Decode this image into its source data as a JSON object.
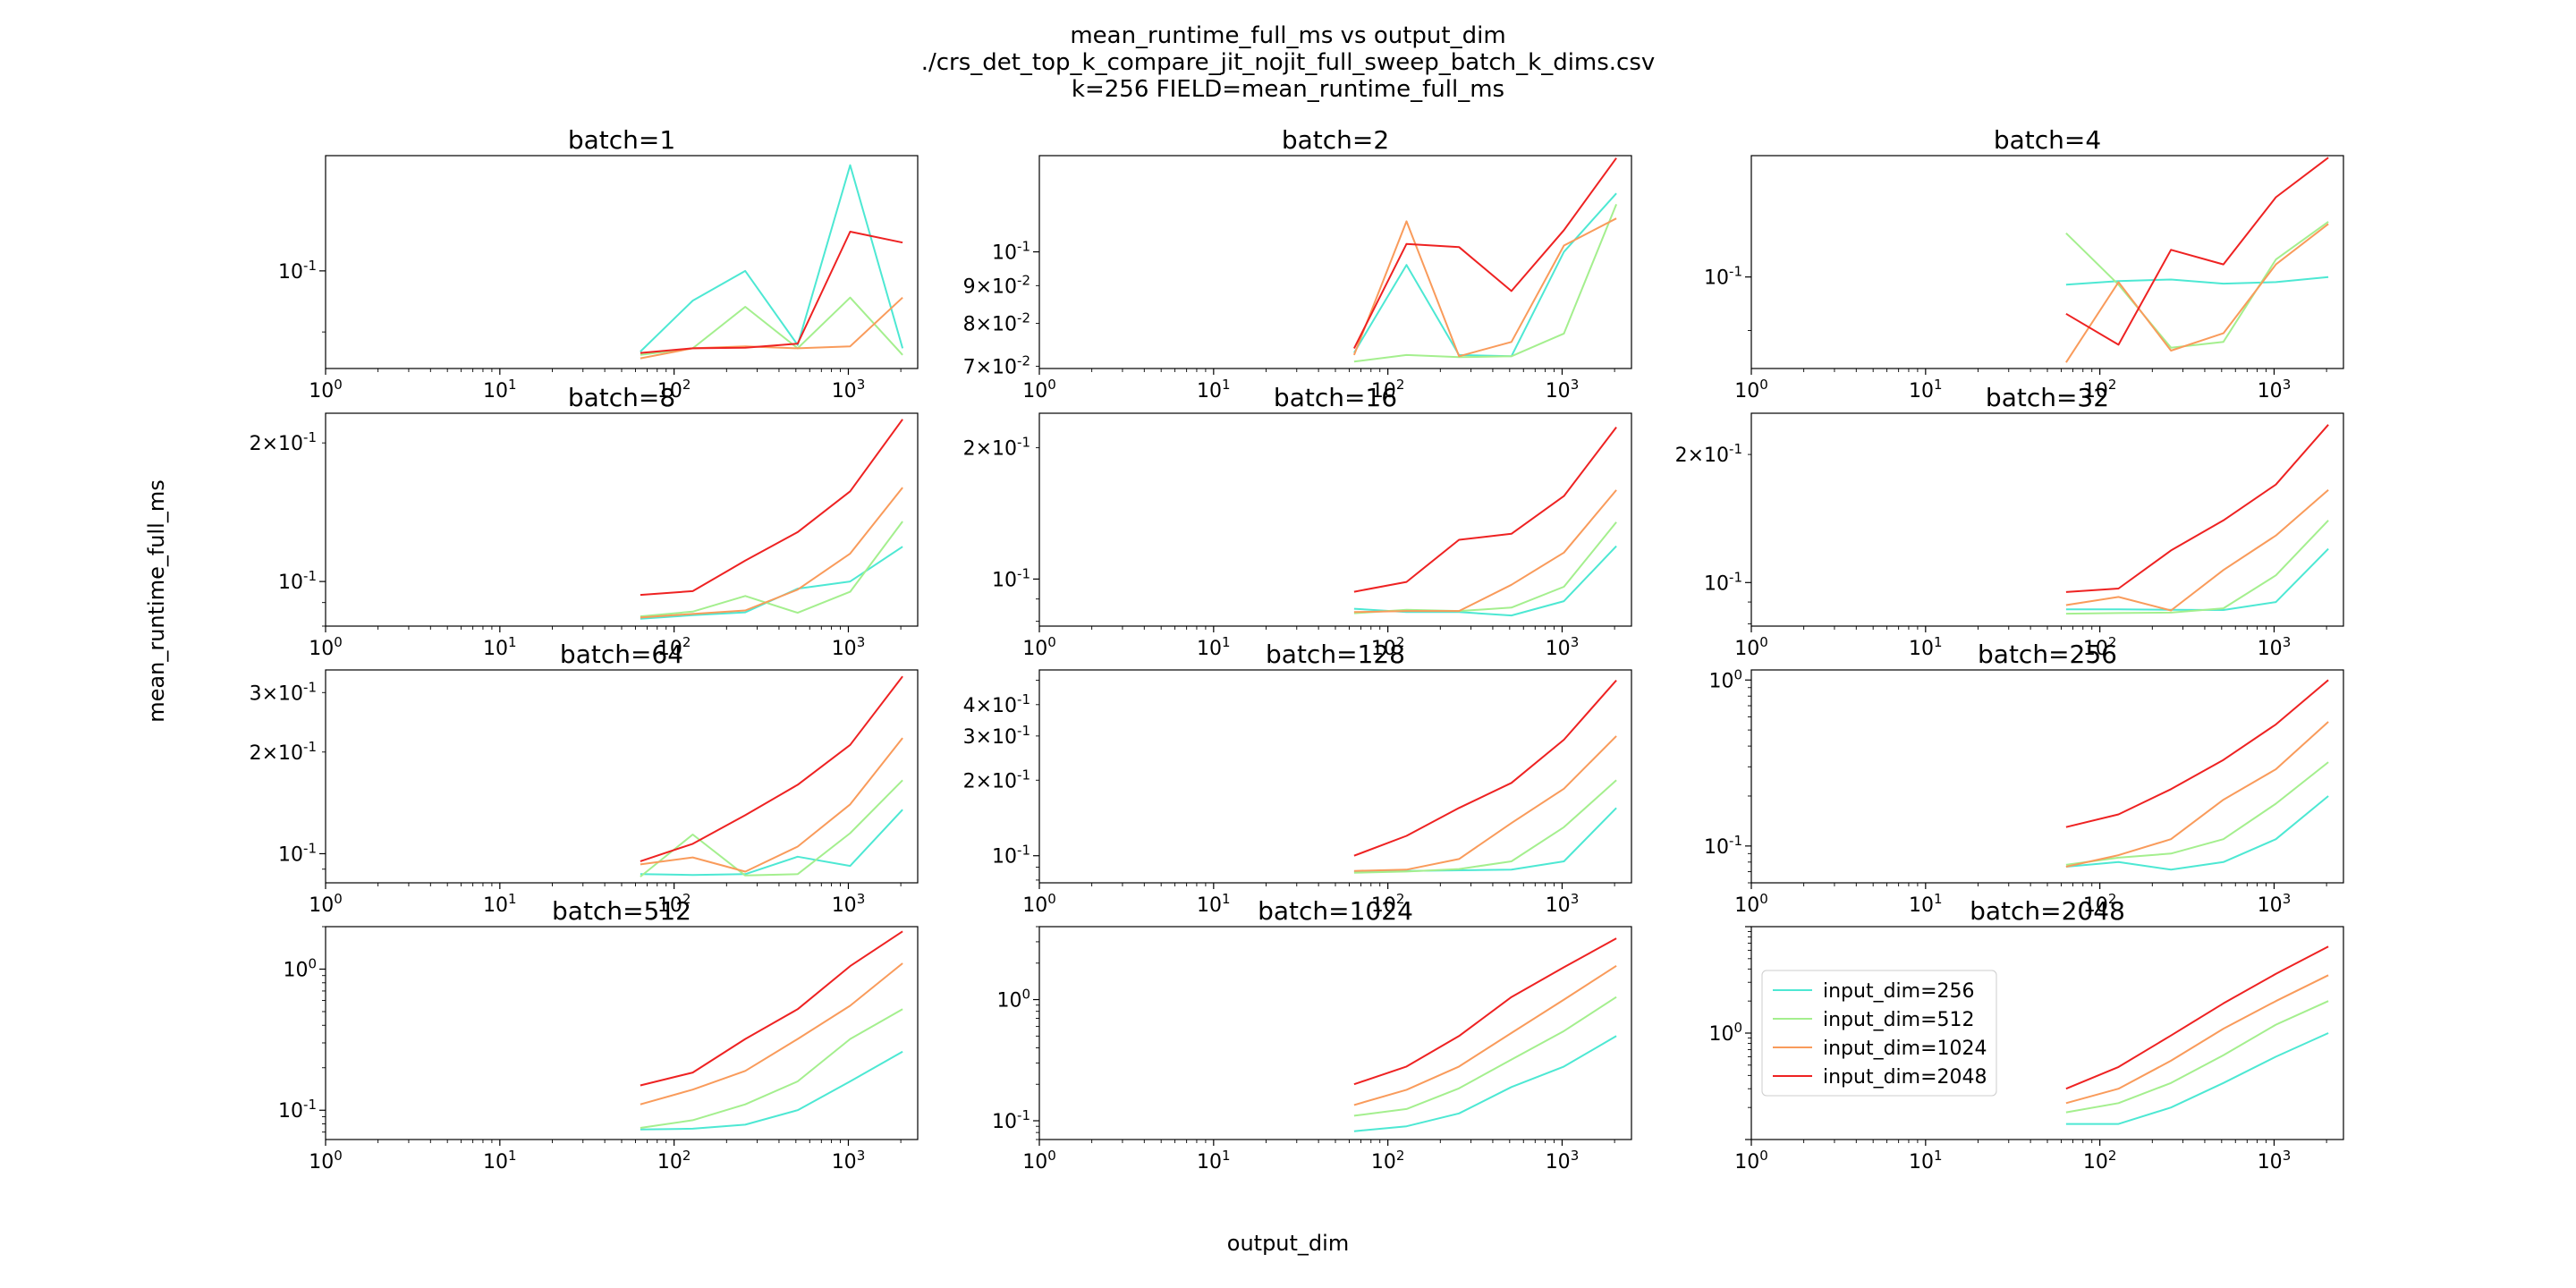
{
  "figure": {
    "title_lines": [
      "mean_runtime_full_ms vs output_dim",
      "./crs_det_top_k_compare_jit_nojit_full_sweep_batch_k_dims.csv",
      "k=256 FIELD=mean_runtime_full_ms"
    ],
    "xlabel": "output_dim",
    "ylabel": "mean_runtime_full_ms"
  },
  "colors": {
    "input_dim=256": "#4de8d3",
    "input_dim=512": "#a4ef8e",
    "input_dim=1024": "#f99b5b",
    "input_dim=2048": "#ee2222"
  },
  "legend": {
    "panel": 11,
    "placement": "center-left",
    "entries": [
      "input_dim=256",
      "input_dim=512",
      "input_dim=1024",
      "input_dim=2048"
    ]
  },
  "chart_data": [
    {
      "type": "line",
      "title": "batch=1",
      "xscale": "log",
      "yscale": "log",
      "xlim": [
        1,
        2500
      ],
      "ylim": [
        0.0845,
        0.122
      ],
      "xticks": [
        "10^0",
        "10^1",
        "10^2",
        "10^3"
      ],
      "yticks": [
        {
          "value": 0.1,
          "label": "10^-1"
        }
      ],
      "x": [
        64,
        128,
        256,
        512,
        1024,
        2048
      ],
      "series": [
        {
          "name": "input_dim=256",
          "values": [
            0.087,
            0.095,
            0.1,
            0.088,
            0.12,
            0.0875
          ]
        },
        {
          "name": "input_dim=512",
          "values": [
            0.0865,
            0.0875,
            0.094,
            0.0875,
            0.0955,
            0.0865
          ]
        },
        {
          "name": "input_dim=1024",
          "values": [
            0.086,
            0.0875,
            0.0878,
            0.0875,
            0.0878,
            0.0955
          ]
        },
        {
          "name": "input_dim=2048",
          "values": [
            0.0868,
            0.0875,
            0.0876,
            0.0882,
            0.107,
            0.105
          ]
        }
      ]
    },
    {
      "type": "line",
      "title": "batch=2",
      "xscale": "log",
      "yscale": "log",
      "xlim": [
        1,
        2500
      ],
      "ylim": [
        0.0695,
        0.135
      ],
      "xticks": [
        "10^0",
        "10^1",
        "10^2",
        "10^3"
      ],
      "yticks": [
        {
          "value": 0.07,
          "label": "7×10^-2"
        },
        {
          "value": 0.08,
          "label": "8×10^-2"
        },
        {
          "value": 0.09,
          "label": "9×10^-2"
        },
        {
          "value": 0.1,
          "label": "10^-1"
        }
      ],
      "x": [
        64,
        128,
        256,
        512,
        1024,
        2048
      ],
      "series": [
        {
          "name": "input_dim=256",
          "values": [
            0.073,
            0.096,
            0.0725,
            0.0722,
            0.1,
            0.12
          ]
        },
        {
          "name": "input_dim=512",
          "values": [
            0.071,
            0.0725,
            0.072,
            0.0722,
            0.0775,
            0.116
          ]
        },
        {
          "name": "input_dim=1024",
          "values": [
            0.0725,
            0.11,
            0.0722,
            0.0755,
            0.102,
            0.111
          ]
        },
        {
          "name": "input_dim=2048",
          "values": [
            0.074,
            0.1025,
            0.1015,
            0.0885,
            0.107,
            0.134
          ]
        }
      ]
    },
    {
      "type": "line",
      "title": "batch=4",
      "xscale": "log",
      "yscale": "log",
      "xlim": [
        1,
        2500
      ],
      "ylim": [
        0.0835,
        0.127
      ],
      "xticks": [
        "10^0",
        "10^1",
        "10^2",
        "10^3"
      ],
      "yticks": [
        {
          "value": 0.1,
          "label": "10^-1"
        }
      ],
      "x": [
        64,
        128,
        256,
        512,
        1024,
        2048
      ],
      "series": [
        {
          "name": "input_dim=256",
          "values": [
            0.0985,
            0.0992,
            0.0995,
            0.0987,
            0.099,
            0.1
          ]
        },
        {
          "name": "input_dim=512",
          "values": [
            0.109,
            0.0985,
            0.087,
            0.088,
            0.1035,
            0.1115
          ]
        },
        {
          "name": "input_dim=1024",
          "values": [
            0.0845,
            0.099,
            0.0865,
            0.0895,
            0.1025,
            0.111
          ]
        },
        {
          "name": "input_dim=2048",
          "values": [
            0.093,
            0.0875,
            0.1055,
            0.1025,
            0.117,
            0.1265
          ]
        }
      ]
    },
    {
      "type": "line",
      "title": "batch=8",
      "xscale": "log",
      "yscale": "log",
      "xlim": [
        1,
        2500
      ],
      "ylim": [
        0.08,
        0.232
      ],
      "xticks": [
        "10^0",
        "10^1",
        "10^2",
        "10^3"
      ],
      "yticks": [
        {
          "value": 0.1,
          "label": "10^-1"
        },
        {
          "value": 0.2,
          "label": "2×10^-1"
        }
      ],
      "x": [
        64,
        128,
        256,
        512,
        1024,
        2048
      ],
      "series": [
        {
          "name": "input_dim=256",
          "values": [
            0.083,
            0.0845,
            0.0857,
            0.0965,
            0.1,
            0.119
          ]
        },
        {
          "name": "input_dim=512",
          "values": [
            0.084,
            0.086,
            0.093,
            0.0855,
            0.095,
            0.135
          ]
        },
        {
          "name": "input_dim=1024",
          "values": [
            0.0835,
            0.085,
            0.0865,
            0.096,
            0.115,
            0.16
          ]
        },
        {
          "name": "input_dim=2048",
          "values": [
            0.0935,
            0.0953,
            0.111,
            0.128,
            0.157,
            0.225
          ]
        }
      ]
    },
    {
      "type": "line",
      "title": "batch=16",
      "xscale": "log",
      "yscale": "log",
      "xlim": [
        1,
        2500
      ],
      "ylim": [
        0.078,
        0.24
      ],
      "xticks": [
        "10^0",
        "10^1",
        "10^2",
        "10^3"
      ],
      "yticks": [
        {
          "value": 0.1,
          "label": "10^-1"
        },
        {
          "value": 0.2,
          "label": "2×10^-1"
        }
      ],
      "x": [
        64,
        128,
        256,
        512,
        1024,
        2048
      ],
      "series": [
        {
          "name": "input_dim=256",
          "values": [
            0.0855,
            0.084,
            0.084,
            0.0825,
            0.089,
            0.119
          ]
        },
        {
          "name": "input_dim=512",
          "values": [
            0.0835,
            0.085,
            0.0845,
            0.086,
            0.096,
            0.135
          ]
        },
        {
          "name": "input_dim=1024",
          "values": [
            0.084,
            0.0845,
            0.0845,
            0.097,
            0.115,
            0.16
          ]
        },
        {
          "name": "input_dim=2048",
          "values": [
            0.0935,
            0.0985,
            0.123,
            0.127,
            0.155,
            0.223
          ]
        }
      ]
    },
    {
      "type": "line",
      "title": "batch=32",
      "xscale": "log",
      "yscale": "log",
      "xlim": [
        1,
        2500
      ],
      "ylim": [
        0.079,
        0.25
      ],
      "xticks": [
        "10^0",
        "10^1",
        "10^2",
        "10^3"
      ],
      "yticks": [
        {
          "value": 0.1,
          "label": "10^-1"
        },
        {
          "value": 0.2,
          "label": "2×10^-1"
        }
      ],
      "x": [
        64,
        128,
        256,
        512,
        1024,
        2048
      ],
      "series": [
        {
          "name": "input_dim=256",
          "values": [
            0.0865,
            0.0865,
            0.0863,
            0.0862,
            0.09,
            0.12
          ]
        },
        {
          "name": "input_dim=512",
          "values": [
            0.0845,
            0.0848,
            0.085,
            0.087,
            0.104,
            0.14
          ]
        },
        {
          "name": "input_dim=1024",
          "values": [
            0.0885,
            0.0925,
            0.086,
            0.107,
            0.129,
            0.165
          ]
        },
        {
          "name": "input_dim=2048",
          "values": [
            0.095,
            0.0968,
            0.119,
            0.14,
            0.17,
            0.235
          ]
        }
      ]
    },
    {
      "type": "line",
      "title": "batch=64",
      "xscale": "log",
      "yscale": "log",
      "xlim": [
        1,
        2500
      ],
      "ylim": [
        0.082,
        0.35
      ],
      "xticks": [
        "10^0",
        "10^1",
        "10^2",
        "10^3"
      ],
      "yticks": [
        {
          "value": 0.1,
          "label": "10^-1"
        },
        {
          "value": 0.2,
          "label": "2×10^-1"
        },
        {
          "value": 0.3,
          "label": "3×10^-1"
        }
      ],
      "x": [
        64,
        128,
        256,
        512,
        1024,
        2048
      ],
      "series": [
        {
          "name": "input_dim=256",
          "values": [
            0.087,
            0.0865,
            0.087,
            0.098,
            0.092,
            0.135
          ]
        },
        {
          "name": "input_dim=512",
          "values": [
            0.0855,
            0.114,
            0.0862,
            0.087,
            0.115,
            0.165
          ]
        },
        {
          "name": "input_dim=1024",
          "values": [
            0.093,
            0.0975,
            0.0885,
            0.105,
            0.14,
            0.22
          ]
        },
        {
          "name": "input_dim=2048",
          "values": [
            0.095,
            0.107,
            0.13,
            0.16,
            0.21,
            0.335
          ]
        }
      ]
    },
    {
      "type": "line",
      "title": "batch=128",
      "xscale": "log",
      "yscale": "log",
      "xlim": [
        1,
        2500
      ],
      "ylim": [
        0.078,
        0.55
      ],
      "xticks": [
        "10^0",
        "10^1",
        "10^2",
        "10^3"
      ],
      "yticks": [
        {
          "value": 0.1,
          "label": "10^-1"
        },
        {
          "value": 0.2,
          "label": "2×10^-1"
        },
        {
          "value": 0.3,
          "label": "3×10^-1"
        },
        {
          "value": 0.4,
          "label": "4×10^-1"
        }
      ],
      "x": [
        64,
        128,
        256,
        512,
        1024,
        2048
      ],
      "series": [
        {
          "name": "input_dim=256",
          "values": [
            0.0865,
            0.087,
            0.0875,
            0.088,
            0.095,
            0.155
          ]
        },
        {
          "name": "input_dim=512",
          "values": [
            0.0855,
            0.0865,
            0.0885,
            0.095,
            0.13,
            0.2
          ]
        },
        {
          "name": "input_dim=1024",
          "values": [
            0.087,
            0.088,
            0.097,
            0.135,
            0.185,
            0.3
          ]
        },
        {
          "name": "input_dim=2048",
          "values": [
            0.1,
            0.12,
            0.155,
            0.195,
            0.29,
            0.5
          ]
        }
      ]
    },
    {
      "type": "line",
      "title": "batch=256",
      "xscale": "log",
      "yscale": "log",
      "xlim": [
        1,
        2500
      ],
      "ylim": [
        0.06,
        1.15
      ],
      "xticks": [
        "10^0",
        "10^1",
        "10^2",
        "10^3"
      ],
      "yticks": [
        {
          "value": 0.1,
          "label": "10^-1"
        },
        {
          "value": 1,
          "label": "10^0"
        }
      ],
      "x": [
        64,
        128,
        256,
        512,
        1024,
        2048
      ],
      "series": [
        {
          "name": "input_dim=256",
          "values": [
            0.075,
            0.08,
            0.072,
            0.08,
            0.11,
            0.2
          ]
        },
        {
          "name": "input_dim=512",
          "values": [
            0.077,
            0.085,
            0.09,
            0.11,
            0.18,
            0.32
          ]
        },
        {
          "name": "input_dim=1024",
          "values": [
            0.075,
            0.088,
            0.11,
            0.19,
            0.29,
            0.56
          ]
        },
        {
          "name": "input_dim=2048",
          "values": [
            0.13,
            0.155,
            0.22,
            0.33,
            0.54,
            1.0
          ]
        }
      ]
    },
    {
      "type": "line",
      "title": "batch=512",
      "xscale": "log",
      "yscale": "log",
      "xlim": [
        1,
        2500
      ],
      "ylim": [
        0.062,
        2.0
      ],
      "xticks": [
        "10^0",
        "10^1",
        "10^2",
        "10^3"
      ],
      "yticks": [
        {
          "value": 0.1,
          "label": "10^-1"
        },
        {
          "value": 1,
          "label": "10^0"
        }
      ],
      "x": [
        64,
        128,
        256,
        512,
        1024,
        2048
      ],
      "series": [
        {
          "name": "input_dim=256",
          "values": [
            0.073,
            0.074,
            0.079,
            0.1,
            0.16,
            0.26
          ]
        },
        {
          "name": "input_dim=512",
          "values": [
            0.075,
            0.085,
            0.11,
            0.16,
            0.32,
            0.52
          ]
        },
        {
          "name": "input_dim=1024",
          "values": [
            0.11,
            0.14,
            0.19,
            0.32,
            0.55,
            1.1
          ]
        },
        {
          "name": "input_dim=2048",
          "values": [
            0.15,
            0.185,
            0.32,
            0.52,
            1.05,
            1.85
          ]
        }
      ]
    },
    {
      "type": "line",
      "title": "batch=1024",
      "xscale": "log",
      "yscale": "log",
      "xlim": [
        1,
        2500
      ],
      "ylim": [
        0.07,
        4.0
      ],
      "xticks": [
        "10^0",
        "10^1",
        "10^2",
        "10^3"
      ],
      "yticks": [
        {
          "value": 0.1,
          "label": "10^-1"
        },
        {
          "value": 1,
          "label": "10^0"
        }
      ],
      "x": [
        64,
        128,
        256,
        512,
        1024,
        2048
      ],
      "series": [
        {
          "name": "input_dim=256",
          "values": [
            0.082,
            0.09,
            0.115,
            0.19,
            0.28,
            0.5
          ]
        },
        {
          "name": "input_dim=512",
          "values": [
            0.11,
            0.125,
            0.185,
            0.32,
            0.55,
            1.05
          ]
        },
        {
          "name": "input_dim=1024",
          "values": [
            0.135,
            0.18,
            0.28,
            0.53,
            1.0,
            1.9
          ]
        },
        {
          "name": "input_dim=2048",
          "values": [
            0.2,
            0.28,
            0.5,
            1.05,
            1.85,
            3.2
          ]
        }
      ]
    },
    {
      "type": "line",
      "title": "batch=2048",
      "xscale": "log",
      "yscale": "log",
      "xlim": [
        1,
        2500
      ],
      "ylim": [
        0.1,
        10.0
      ],
      "xticks": [
        "10^0",
        "10^1",
        "10^2",
        "10^3"
      ],
      "yticks": [
        {
          "value": 1,
          "label": "10^0"
        }
      ],
      "x": [
        64,
        128,
        256,
        512,
        1024,
        2048
      ],
      "series": [
        {
          "name": "input_dim=256",
          "values": [
            0.14,
            0.14,
            0.2,
            0.34,
            0.6,
            1.0
          ]
        },
        {
          "name": "input_dim=512",
          "values": [
            0.18,
            0.22,
            0.34,
            0.62,
            1.2,
            2.0
          ]
        },
        {
          "name": "input_dim=1024",
          "values": [
            0.22,
            0.3,
            0.55,
            1.1,
            2.0,
            3.5
          ]
        },
        {
          "name": "input_dim=2048",
          "values": [
            0.3,
            0.48,
            0.95,
            1.9,
            3.6,
            6.5
          ]
        }
      ]
    }
  ]
}
